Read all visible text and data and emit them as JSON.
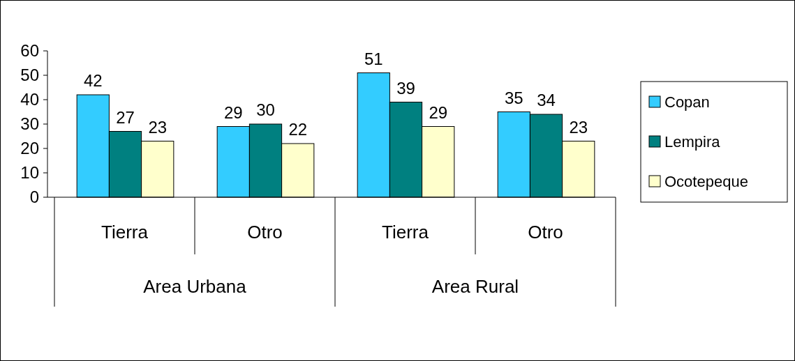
{
  "chart_data": {
    "type": "bar",
    "categories": [
      "Tierra",
      "Otro",
      "Tierra",
      "Otro"
    ],
    "annotations": [
      "Area Urbana",
      "Area Rural"
    ],
    "series": [
      {
        "name": "Copan",
        "color": "#33ccff",
        "values": [
          42,
          29,
          51,
          35
        ]
      },
      {
        "name": "Lempira",
        "color": "#008080",
        "values": [
          27,
          30,
          39,
          34
        ]
      },
      {
        "name": "Ocotepeque",
        "color": "#ffffcc",
        "values": [
          23,
          22,
          29,
          23
        ]
      }
    ],
    "ylim": [
      0,
      60
    ],
    "yticks": [
      0,
      10,
      20,
      30,
      40,
      50,
      60
    ],
    "grid": false,
    "legend": "right",
    "data_labels": true
  }
}
